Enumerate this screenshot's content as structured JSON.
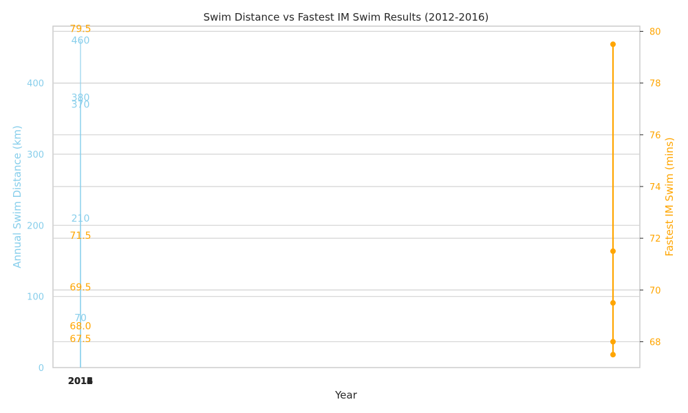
{
  "chart_data": {
    "type": "bar+line",
    "title": "Swim Distance vs Fastest IM Swim Results (2012-2016)",
    "xlabel": "Year",
    "ylabel_left": "Annual Swim Distance (km)",
    "ylabel_right": "Fastest IM Swim (mins)",
    "left_ylim": [
      0,
      480
    ],
    "right_ylim": [
      67,
      80.2
    ],
    "left_ticks": [
      0,
      100,
      200,
      300,
      400
    ],
    "right_ticks": [
      68,
      70,
      72,
      74,
      76,
      78,
      80
    ],
    "x_tick_labels": [
      "2012",
      "2013",
      "2014",
      "2015",
      "2016"
    ],
    "grid": true,
    "series": [
      {
        "name": "Annual Swim Distance (km)",
        "axis": "left",
        "kind": "bar",
        "color": "#87ceeb",
        "categories": [
          "2012",
          "2013",
          "2014",
          "2015",
          "2016"
        ],
        "values": [
          70,
          210,
          370,
          380,
          460
        ],
        "labels": [
          "70",
          "210",
          "370",
          "380",
          "460"
        ]
      },
      {
        "name": "Fastest IM Swim (mins)",
        "axis": "right",
        "kind": "line",
        "color": "#ffa500",
        "categories": [
          "2012",
          "2013",
          "2014",
          "2015",
          "2016"
        ],
        "values": [
          79.5,
          71.5,
          69.5,
          68.0,
          67.5
        ],
        "labels": [
          "79.5",
          "71.5",
          "69.5",
          "68.0",
          "67.5"
        ]
      }
    ]
  }
}
